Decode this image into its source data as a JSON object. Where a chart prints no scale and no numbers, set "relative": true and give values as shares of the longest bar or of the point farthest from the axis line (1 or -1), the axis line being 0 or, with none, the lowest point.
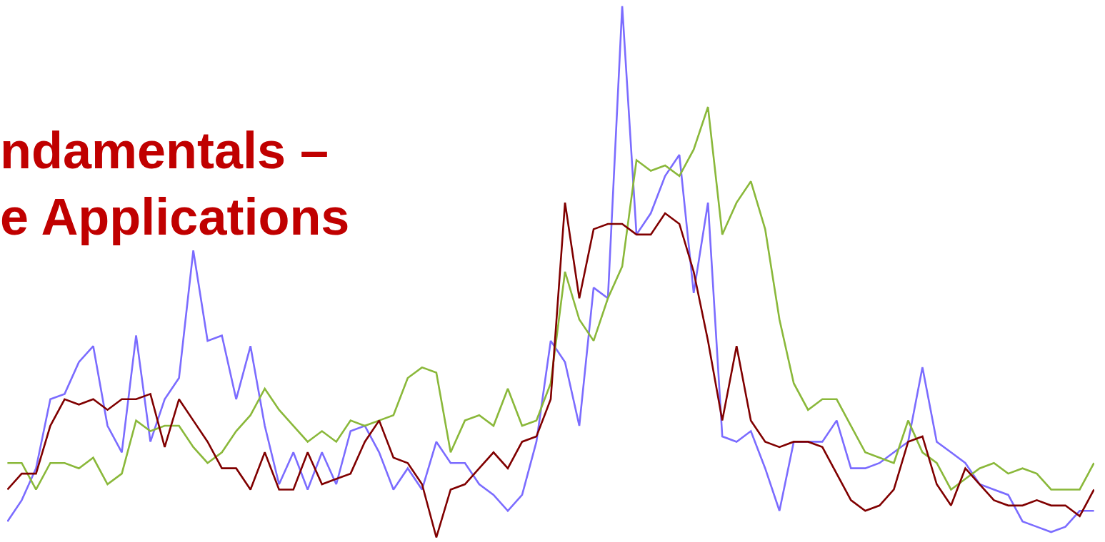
{
  "chart_data": {
    "type": "line",
    "title": "ndamentals –\ne Applications",
    "relative": true,
    "marker": "none",
    "line_style": "solid",
    "categories": [
      null,
      null,
      null,
      null,
      null,
      null,
      null,
      null,
      null,
      null,
      null,
      null,
      null,
      null,
      null,
      null,
      null,
      null,
      null,
      null,
      null,
      null,
      null,
      null,
      null,
      null,
      null,
      null,
      null,
      null,
      null,
      null,
      null,
      null,
      null,
      null,
      null,
      null,
      null,
      null,
      null,
      null,
      null,
      null,
      null,
      null,
      null,
      null,
      null,
      null,
      null,
      null,
      null,
      null,
      null,
      null,
      null,
      null,
      null,
      null,
      null,
      null,
      null,
      null,
      null,
      null,
      null,
      null,
      null,
      null,
      null,
      null,
      null,
      null,
      null,
      null,
      null
    ],
    "series": [
      {
        "color": "#7b6cff",
        "values": [
          0.03,
          0.07,
          0.13,
          0.26,
          0.27,
          0.33,
          0.36,
          0.21,
          0.16,
          0.38,
          0.18,
          0.26,
          0.3,
          0.54,
          0.37,
          0.38,
          0.26,
          0.36,
          0.21,
          0.1,
          0.16,
          0.09,
          0.16,
          0.1,
          0.2,
          0.21,
          0.16,
          0.09,
          0.13,
          0.09,
          0.18,
          0.14,
          0.14,
          0.1,
          0.08,
          0.05,
          0.08,
          0.18,
          0.37,
          0.33,
          0.21,
          0.47,
          0.45,
          1.0,
          0.57,
          0.61,
          0.68,
          0.72,
          0.46,
          0.63,
          0.19,
          0.18,
          0.2,
          0.13,
          0.05,
          0.18,
          0.18,
          0.18,
          0.22,
          0.13,
          0.13,
          0.14,
          0.16,
          0.18,
          0.32,
          0.18,
          0.16,
          0.14,
          0.1,
          0.09,
          0.08,
          0.03,
          0.02,
          0.01,
          0.02,
          0.05,
          0.05
        ]
      },
      {
        "color": "#8ab83a",
        "values": [
          0.14,
          0.14,
          0.09,
          0.14,
          0.14,
          0.13,
          0.15,
          0.1,
          0.12,
          0.22,
          0.2,
          0.21,
          0.21,
          0.17,
          0.14,
          0.16,
          0.2,
          0.23,
          0.28,
          0.24,
          0.21,
          0.18,
          0.2,
          0.18,
          0.22,
          0.21,
          0.22,
          0.23,
          0.3,
          0.32,
          0.31,
          0.16,
          0.22,
          0.23,
          0.21,
          0.28,
          0.21,
          0.22,
          0.29,
          0.5,
          0.41,
          0.37,
          0.45,
          0.51,
          0.71,
          0.69,
          0.7,
          0.68,
          0.73,
          0.81,
          0.57,
          0.63,
          0.67,
          0.58,
          0.41,
          0.29,
          0.24,
          0.26,
          0.26,
          0.21,
          0.16,
          0.15,
          0.14,
          0.22,
          0.16,
          0.14,
          0.09,
          0.11,
          0.13,
          0.14,
          0.12,
          0.13,
          0.12,
          0.09,
          0.09,
          0.09,
          0.14
        ]
      },
      {
        "color": "#800000",
        "values": [
          0.09,
          0.12,
          0.12,
          0.21,
          0.26,
          0.25,
          0.26,
          0.24,
          0.26,
          0.26,
          0.27,
          0.17,
          0.26,
          0.22,
          0.18,
          0.13,
          0.13,
          0.09,
          0.16,
          0.09,
          0.09,
          0.16,
          0.1,
          0.11,
          0.12,
          0.18,
          0.22,
          0.15,
          0.14,
          0.1,
          0.0,
          0.09,
          0.1,
          0.13,
          0.16,
          0.13,
          0.18,
          0.19,
          0.26,
          0.63,
          0.45,
          0.58,
          0.59,
          0.59,
          0.57,
          0.57,
          0.61,
          0.59,
          0.5,
          0.37,
          0.22,
          0.36,
          0.22,
          0.18,
          0.17,
          0.18,
          0.18,
          0.17,
          0.12,
          0.07,
          0.05,
          0.06,
          0.09,
          0.18,
          0.19,
          0.1,
          0.06,
          0.13,
          0.1,
          0.07,
          0.06,
          0.06,
          0.07,
          0.06,
          0.06,
          0.04,
          0.09
        ]
      }
    ]
  }
}
